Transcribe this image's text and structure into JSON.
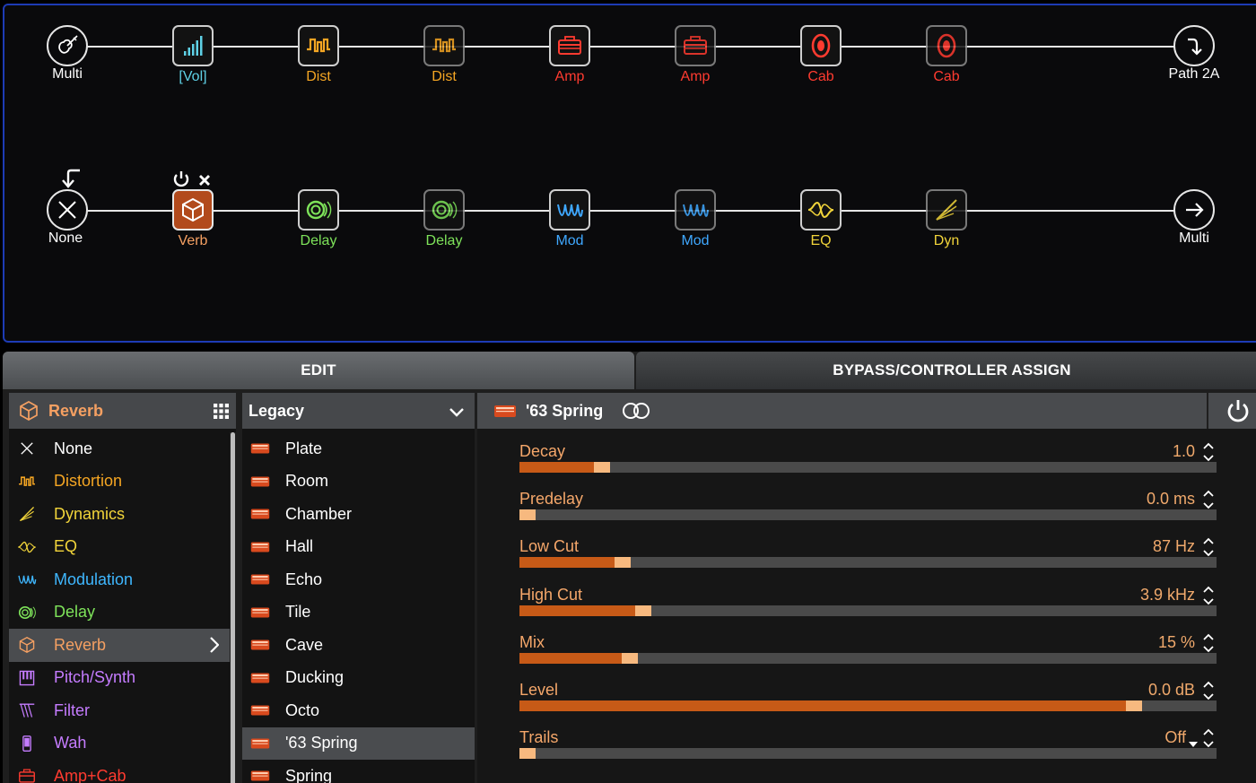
{
  "chain": {
    "row1": {
      "input": {
        "label": "Multi"
      },
      "blocks": [
        {
          "label": "[Vol]",
          "color": "#5fd1e6",
          "icon": "volume-icon"
        },
        {
          "label": "Dist",
          "color": "#f5a623",
          "icon": "distortion-icon"
        },
        {
          "label": "Dist",
          "color": "#f5a623",
          "icon": "distortion-icon"
        },
        {
          "label": "Amp",
          "color": "#ff3b30",
          "icon": "amp-icon"
        },
        {
          "label": "Amp",
          "color": "#ff3b30",
          "icon": "amp-icon"
        },
        {
          "label": "Cab",
          "color": "#ff3b30",
          "icon": "cab-icon"
        },
        {
          "label": "Cab",
          "color": "#ff3b30",
          "icon": "cab-icon"
        }
      ],
      "output": {
        "label": "Path 2A"
      }
    },
    "row2": {
      "input": {
        "label": "None"
      },
      "blocks": [
        {
          "label": "Verb",
          "color": "#f5a062",
          "icon": "reverb-icon"
        },
        {
          "label": "Delay",
          "color": "#7ee35a",
          "icon": "delay-icon"
        },
        {
          "label": "Delay",
          "color": "#7ee35a",
          "icon": "delay-icon"
        },
        {
          "label": "Mod",
          "color": "#3fa8ff",
          "icon": "modulation-icon"
        },
        {
          "label": "Mod",
          "color": "#3fa8ff",
          "icon": "modulation-icon"
        },
        {
          "label": "EQ",
          "color": "#f1d43a",
          "icon": "eq-icon"
        },
        {
          "label": "Dyn",
          "color": "#f1d43a",
          "icon": "dynamics-icon"
        }
      ],
      "output": {
        "label": "Multi"
      }
    }
  },
  "tabs": {
    "edit": "EDIT",
    "bypass": "BYPASS/CONTROLLER ASSIGN"
  },
  "categories": {
    "header": "Reverb",
    "items": [
      {
        "label": "None",
        "color": "#ffffff",
        "icon": "x-icon"
      },
      {
        "label": "Distortion",
        "color": "#f5a623",
        "icon": "distortion-icon"
      },
      {
        "label": "Dynamics",
        "color": "#f1d43a",
        "icon": "dynamics-icon"
      },
      {
        "label": "EQ",
        "color": "#f1d43a",
        "icon": "eq-icon"
      },
      {
        "label": "Modulation",
        "color": "#3fb7ff",
        "icon": "modulation-icon"
      },
      {
        "label": "Delay",
        "color": "#7ee35a",
        "icon": "delay-icon"
      },
      {
        "label": "Reverb",
        "color": "#f5a062",
        "icon": "reverb-icon"
      },
      {
        "label": "Pitch/Synth",
        "color": "#c57cff",
        "icon": "pitch-synth-icon"
      },
      {
        "label": "Filter",
        "color": "#c57cff",
        "icon": "filter-icon"
      },
      {
        "label": "Wah",
        "color": "#c57cff",
        "icon": "wah-icon"
      },
      {
        "label": "Amp+Cab",
        "color": "#ff3b30",
        "icon": "amp-cab-icon"
      }
    ],
    "selected_index": 6
  },
  "models": {
    "header": "Legacy",
    "items": [
      "Plate",
      "Room",
      "Chamber",
      "Hall",
      "Echo",
      "Tile",
      "Cave",
      "Ducking",
      "Octo",
      "'63 Spring",
      "Spring"
    ],
    "selected_index": 9
  },
  "params": {
    "model_name": "'63 Spring",
    "items": [
      {
        "label": "Decay",
        "value": "1.0",
        "level": 0.11
      },
      {
        "label": "Predelay",
        "value": "0.0 ms",
        "level": 0.0
      },
      {
        "label": "Low Cut",
        "value": "87 Hz",
        "level": 0.14
      },
      {
        "label": "High Cut",
        "value": "3.9 kHz",
        "level": 0.17
      },
      {
        "label": "Mix",
        "value": "15 %",
        "level": 0.15
      },
      {
        "label": "Level",
        "value": "0.0 dB",
        "level": 0.89
      },
      {
        "label": "Trails",
        "value": "Off",
        "level": 0.0
      }
    ]
  }
}
